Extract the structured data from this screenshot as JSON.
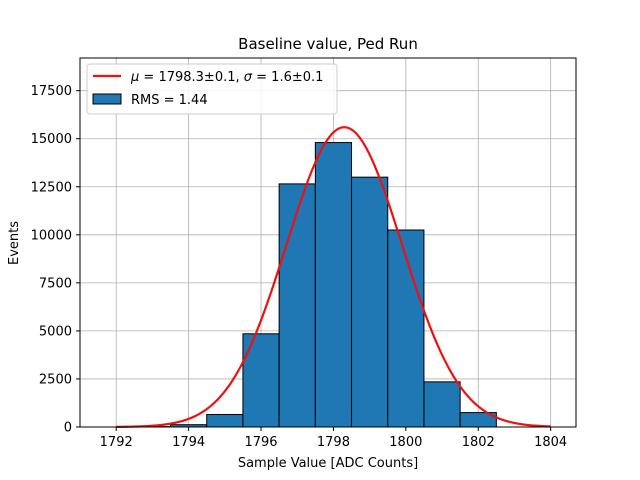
{
  "chart_data": {
    "type": "bar",
    "title": "Baseline value, Ped Run",
    "xlabel": "Sample Value [ADC Counts]",
    "ylabel": "Events",
    "xlim": [
      1791,
      1804.7
    ],
    "ylim": [
      0,
      19200
    ],
    "x_ticks": [
      1792,
      1794,
      1796,
      1798,
      1800,
      1802,
      1804
    ],
    "y_ticks": [
      0,
      2500,
      5000,
      7500,
      10000,
      12500,
      15000,
      17500
    ],
    "grid": true,
    "legend_position": "top-left",
    "histogram": {
      "name": "RMS = 1.44",
      "color": "#1f77b4",
      "edge_color": "#000000",
      "bins": [
        {
          "x0": 1792.5,
          "x1": 1793.5,
          "value": 20
        },
        {
          "x0": 1793.5,
          "x1": 1794.5,
          "value": 120
        },
        {
          "x0": 1794.5,
          "x1": 1795.5,
          "value": 650
        },
        {
          "x0": 1795.5,
          "x1": 1796.5,
          "value": 4850
        },
        {
          "x0": 1796.5,
          "x1": 1797.5,
          "value": 12650
        },
        {
          "x0": 1797.5,
          "x1": 1798.5,
          "value": 14800
        },
        {
          "x0": 1798.5,
          "x1": 1799.5,
          "value": 13000
        },
        {
          "x0": 1799.5,
          "x1": 1800.5,
          "value": 10250
        },
        {
          "x0": 1800.5,
          "x1": 1801.5,
          "value": 2350
        },
        {
          "x0": 1801.5,
          "x1": 1802.5,
          "value": 750
        }
      ]
    },
    "fit": {
      "type": "gaussian",
      "color": "#ee1111",
      "mu": 1798.3,
      "sigma": 1.6,
      "amplitude": 15600,
      "x_range": [
        1792,
        1804
      ],
      "legend_parts": {
        "mu_symbol": "μ",
        "mu_text": " = 1798.3±0.1, ",
        "sigma_symbol": "σ",
        "sigma_text": " = 1.6±0.1"
      }
    }
  }
}
